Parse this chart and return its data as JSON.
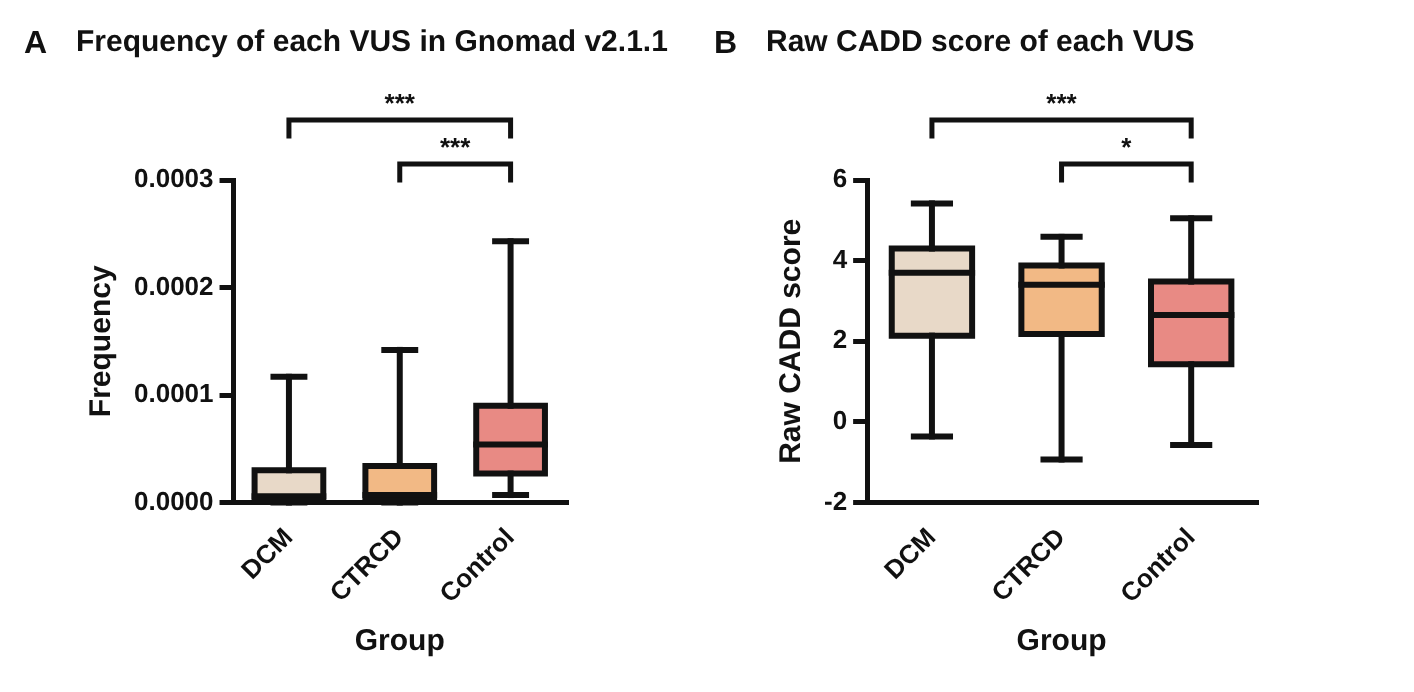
{
  "chart_data": [
    {
      "type": "box",
      "title": "Frequency of each VUS in Gnomad v2.1.1",
      "xlabel": "Group",
      "ylabel": "Frequency",
      "categories": [
        "DCM",
        "CTRCD",
        "Control"
      ],
      "colors": [
        "#e8d9c8",
        "#f2b985",
        "#e88a84"
      ],
      "boxes": [
        {
          "low": 0,
          "q1": 2e-06,
          "median": 6e-06,
          "q3": 3e-05,
          "high": 0.000117
        },
        {
          "low": 0,
          "q1": 2e-06,
          "median": 7e-06,
          "q3": 3.4e-05,
          "high": 0.000142
        },
        {
          "low": 7e-06,
          "q1": 2.7e-05,
          "median": 5.4e-05,
          "q3": 9e-05,
          "high": 0.000243
        }
      ],
      "ylim": [
        0,
        0.0003
      ],
      "yticks": [
        {
          "value": 0,
          "label": "0.0000"
        },
        {
          "value": 0.0001,
          "label": "0.0001"
        },
        {
          "value": 0.0002,
          "label": "0.0002"
        },
        {
          "value": 0.0003,
          "label": "0.0003"
        }
      ],
      "grid": false,
      "annotations": [
        "A",
        "***",
        "***"
      ]
    },
    {
      "type": "box",
      "title": "Raw CADD score of each VUS",
      "xlabel": "Group",
      "ylabel": "Raw CADD score",
      "categories": [
        "DCM",
        "CTRCD",
        "Control"
      ],
      "colors": [
        "#e8d9c8",
        "#f2b985",
        "#e88a84"
      ],
      "boxes": [
        {
          "low": -0.36,
          "q1": 2.14,
          "median": 3.7,
          "q3": 4.3,
          "high": 5.42
        },
        {
          "low": -0.93,
          "q1": 2.18,
          "median": 3.4,
          "q3": 3.88,
          "high": 4.59
        },
        {
          "low": -0.57,
          "q1": 1.43,
          "median": 2.65,
          "q3": 3.48,
          "high": 5.05
        }
      ],
      "ylim": [
        -2,
        6
      ],
      "yticks": [
        -2,
        0,
        2,
        4,
        6
      ],
      "grid": false,
      "annotations": [
        "B",
        "***",
        "*"
      ]
    }
  ]
}
